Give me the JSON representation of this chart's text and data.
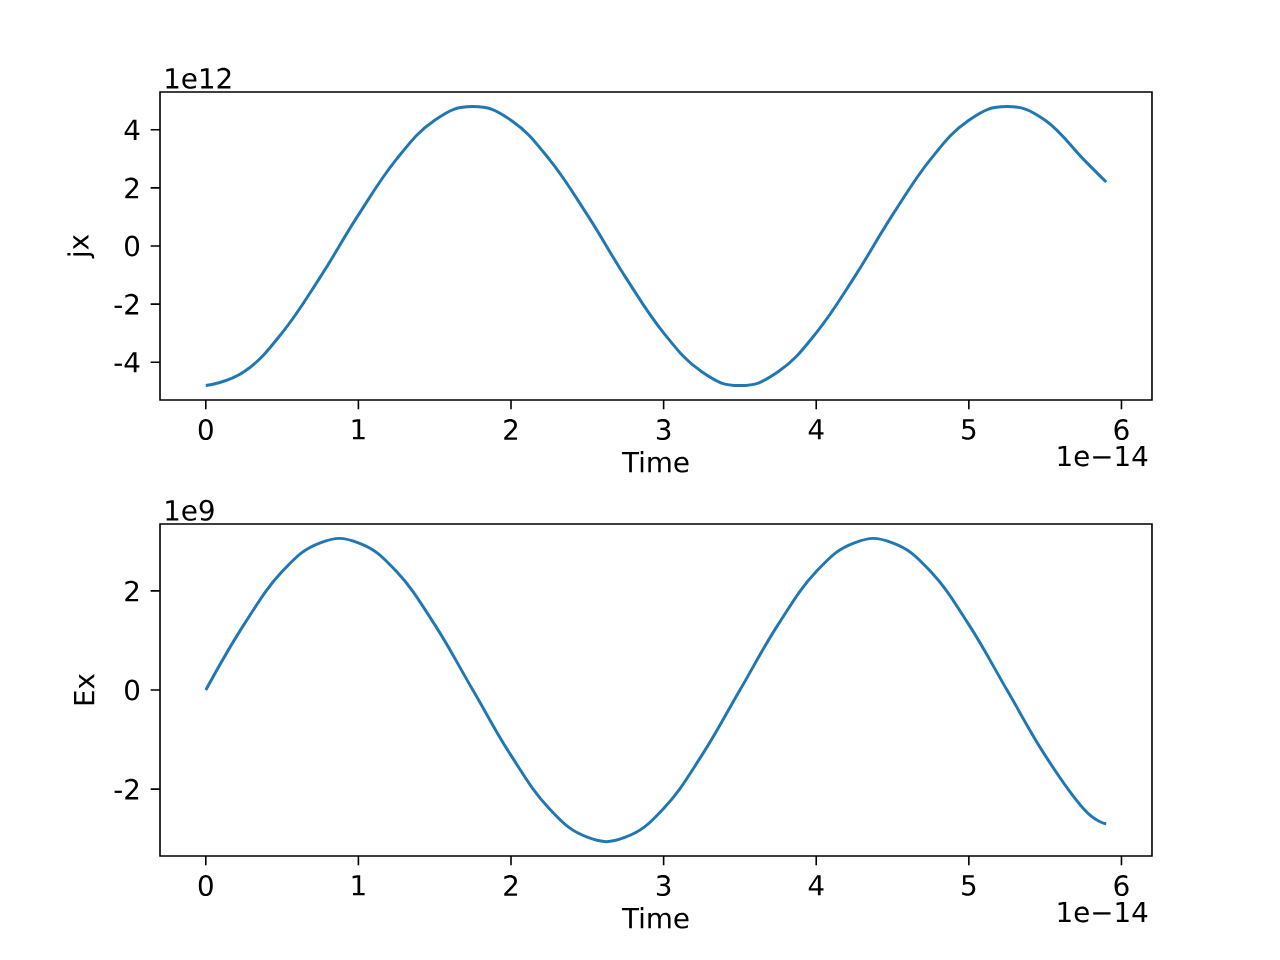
{
  "chart_data": [
    {
      "type": "line",
      "xlabel": "Time",
      "ylabel": "jx",
      "annotations": [
        "1e12",
        "1e−14"
      ],
      "x": [
        0,
        0.25,
        0.5,
        0.75,
        1,
        1.25,
        1.5,
        1.75,
        2,
        2.25,
        2.5,
        2.75,
        3,
        3.25,
        3.5,
        3.75,
        4,
        4.25,
        4.5,
        4.75,
        5,
        5.25,
        5.5,
        5.75,
        5.9
      ],
      "series": [
        {
          "color": "#1f77b4",
          "values": [
            -4.8,
            -4.33,
            -2.99,
            -1.07,
            1.07,
            2.99,
            4.33,
            4.8,
            4.33,
            2.99,
            1.07,
            -1.07,
            -2.99,
            -4.33,
            -4.8,
            -4.33,
            -2.99,
            -1.07,
            1.07,
            2.99,
            4.33,
            4.8,
            4.33,
            2.99,
            2.2
          ]
        }
      ],
      "xlim": [
        -0.3,
        6.2
      ],
      "ylim": [
        -5.3,
        5.3
      ],
      "xticks": [
        0,
        1,
        2,
        3,
        4,
        5,
        6
      ],
      "yticks": [
        -4,
        -2,
        0,
        2,
        4
      ]
    },
    {
      "type": "line",
      "xlabel": "Time",
      "ylabel": "Ex",
      "annotations": [
        "1e9",
        "1e−14"
      ],
      "x": [
        0,
        0.25,
        0.5,
        0.75,
        1,
        1.25,
        1.5,
        1.75,
        2,
        2.25,
        2.5,
        2.75,
        3,
        3.25,
        3.5,
        3.75,
        4,
        4.25,
        4.5,
        4.75,
        5,
        5.25,
        5.5,
        5.75,
        5.9
      ],
      "series": [
        {
          "color": "#1f77b4",
          "values": [
            0,
            1.32,
            2.39,
            2.97,
            2.97,
            2.39,
            1.32,
            0,
            -1.32,
            -2.39,
            -2.97,
            -2.97,
            -2.39,
            -1.32,
            0,
            1.32,
            2.39,
            2.97,
            2.97,
            2.39,
            1.32,
            0,
            -1.32,
            -2.39,
            -2.7
          ]
        }
      ],
      "xlim": [
        -0.3,
        6.2
      ],
      "ylim": [
        -3.35,
        3.35
      ],
      "xticks": [
        0,
        1,
        2,
        3,
        4,
        5,
        6
      ],
      "yticks": [
        -2,
        0,
        2
      ]
    }
  ]
}
